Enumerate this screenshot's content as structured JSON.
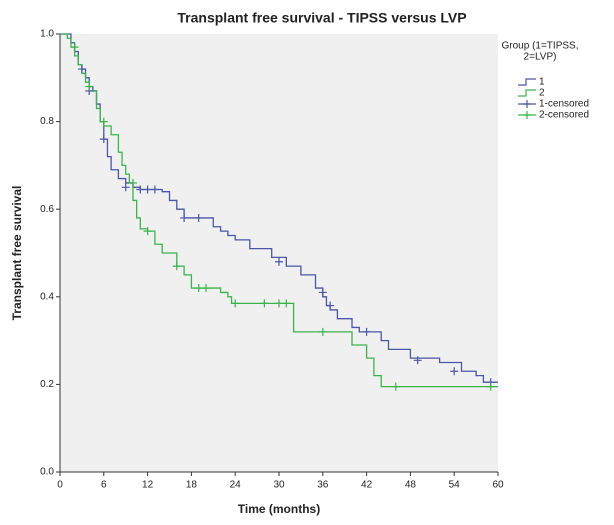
{
  "chart_data": {
    "type": "line",
    "title": "Transplant free survival - TIPSS versus LVP",
    "x_label": "Time (months)",
    "y_label": "Transplant free survival",
    "legend_title": [
      "Group (1=TIPSS,",
      "2=LVP)"
    ],
    "xlim": [
      0,
      60
    ],
    "ylim": [
      0,
      1
    ],
    "xticks": [
      0,
      6,
      12,
      18,
      24,
      30,
      36,
      42,
      48,
      54,
      60
    ],
    "yticks": [
      {
        "value": 0,
        "label": "0.0"
      },
      0.2,
      0.4,
      0.6,
      0.8,
      {
        "value": 1,
        "label": "1.0"
      }
    ],
    "grid": false,
    "legend": "right",
    "series": [
      {
        "name": "1",
        "color": "#4a56a6",
        "kind": "step",
        "x": [
          0,
          1.5,
          2,
          2.5,
          3,
          3.5,
          4,
          4.5,
          5,
          5.5,
          6,
          6.5,
          7,
          8,
          9,
          10,
          11,
          14,
          15,
          16,
          17,
          20,
          21,
          22,
          23,
          24,
          26,
          29,
          31,
          33,
          35,
          36,
          36.5,
          37,
          38,
          40,
          41,
          44,
          45,
          48,
          52,
          55,
          57,
          58,
          60
        ],
        "values": [
          1.0,
          0.98,
          0.96,
          0.93,
          0.92,
          0.9,
          0.88,
          0.87,
          0.84,
          0.8,
          0.76,
          0.72,
          0.69,
          0.67,
          0.66,
          0.65,
          0.645,
          0.64,
          0.62,
          0.6,
          0.58,
          0.58,
          0.56,
          0.55,
          0.54,
          0.53,
          0.51,
          0.49,
          0.47,
          0.45,
          0.42,
          0.4,
          0.38,
          0.37,
          0.35,
          0.33,
          0.32,
          0.3,
          0.28,
          0.26,
          0.25,
          0.23,
          0.22,
          0.205,
          0.205
        ]
      },
      {
        "name": "2",
        "color": "#3ab54a",
        "kind": "step",
        "x": [
          0,
          1,
          1.5,
          2,
          2.5,
          3,
          3.5,
          4,
          5,
          5.5,
          6,
          7,
          8,
          8.5,
          9,
          9.5,
          10,
          10.5,
          11,
          12,
          13,
          14,
          16,
          17,
          18,
          22,
          23,
          23.5,
          31,
          32,
          39,
          40,
          42,
          43,
          44,
          60
        ],
        "values": [
          1.0,
          0.99,
          0.97,
          0.95,
          0.93,
          0.91,
          0.89,
          0.87,
          0.83,
          0.8,
          0.79,
          0.77,
          0.73,
          0.7,
          0.68,
          0.66,
          0.62,
          0.58,
          0.555,
          0.55,
          0.52,
          0.5,
          0.47,
          0.45,
          0.42,
          0.41,
          0.4,
          0.385,
          0.385,
          0.32,
          0.32,
          0.29,
          0.26,
          0.22,
          0.195,
          0.195
        ]
      },
      {
        "name": "1-censored",
        "color": "#4a56a6",
        "kind": "censored",
        "x": [
          3,
          4,
          6,
          9,
          11,
          12,
          13,
          17,
          19,
          30,
          36,
          37,
          42,
          49,
          54,
          59
        ],
        "values": [
          0.92,
          0.87,
          0.76,
          0.65,
          0.645,
          0.645,
          0.645,
          0.58,
          0.58,
          0.48,
          0.41,
          0.38,
          0.32,
          0.255,
          0.23,
          0.205
        ]
      },
      {
        "name": "2-censored",
        "color": "#3ab54a",
        "kind": "censored",
        "x": [
          2,
          4,
          6,
          10,
          12,
          16,
          19,
          20,
          24,
          28,
          30,
          31,
          36,
          46,
          59
        ],
        "values": [
          0.97,
          0.88,
          0.8,
          0.66,
          0.55,
          0.47,
          0.42,
          0.42,
          0.385,
          0.385,
          0.385,
          0.385,
          0.32,
          0.195,
          0.195
        ]
      }
    ]
  }
}
